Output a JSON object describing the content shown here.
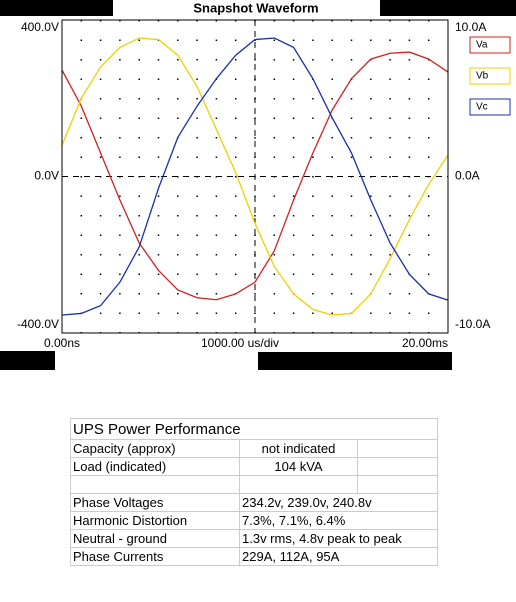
{
  "chart_data": {
    "type": "line",
    "title": "Snapshot Waveform",
    "x_label": "1000.00 us/div",
    "x": [
      0,
      1,
      2,
      3,
      4,
      5,
      6,
      7,
      8,
      9,
      10,
      11,
      12,
      13,
      14,
      15,
      16,
      17,
      18,
      19,
      20
    ],
    "xlim": [
      0,
      20
    ],
    "xticks": [
      {
        "value": 0,
        "label": "0.00ns"
      },
      {
        "value": 20,
        "label": "20.00ms"
      }
    ],
    "ylim": [
      -400,
      400
    ],
    "yticks": [
      {
        "value": -400,
        "label": "-400.0V"
      },
      {
        "value": 0,
        "label": "0.0V"
      },
      {
        "value": 400,
        "label": "400.0V"
      }
    ],
    "y2lim": [
      -10,
      10
    ],
    "y2ticks": [
      {
        "value": -10,
        "label": "-10.0A"
      },
      {
        "value": 0,
        "label": "0.0A"
      },
      {
        "value": 10,
        "label": "10.0A"
      }
    ],
    "series": [
      {
        "name": "Va",
        "color": "#d42020",
        "values": [
          272,
          180,
          60,
          -60,
          -170,
          -240,
          -290,
          -310,
          -315,
          -300,
          -270,
          -190,
          -60,
          60,
          170,
          250,
          300,
          315,
          318,
          300,
          267
        ]
      },
      {
        "name": "Vb",
        "color": "#f0d000",
        "values": [
          80,
          200,
          280,
          330,
          354,
          350,
          310,
          230,
          120,
          10,
          -120,
          -230,
          -300,
          -340,
          -354,
          -350,
          -300,
          -210,
          -110,
          -20,
          55
        ]
      },
      {
        "name": "Vc",
        "color": "#1a2fb0",
        "values": [
          -354,
          -350,
          -330,
          -270,
          -180,
          -30,
          100,
          180,
          250,
          310,
          350,
          354,
          330,
          250,
          150,
          60,
          -60,
          -170,
          -250,
          -300,
          -316
        ]
      }
    ]
  },
  "table": {
    "title": "UPS Power Performance",
    "rows": [
      [
        "Capacity (approx)",
        "not indicated"
      ],
      [
        "Load (indicated)",
        "104 kVA"
      ],
      [
        "Phase Voltages",
        "234.2v, 239.0v, 240.8v"
      ],
      [
        "Harmonic Distortion",
        "7.3%, 7.1%, 6.4%"
      ],
      [
        "Neutral - ground",
        "1.3v rms, 4.8v peak to peak"
      ],
      [
        "Phase Currents",
        "229A, 112A, 95A"
      ]
    ]
  }
}
